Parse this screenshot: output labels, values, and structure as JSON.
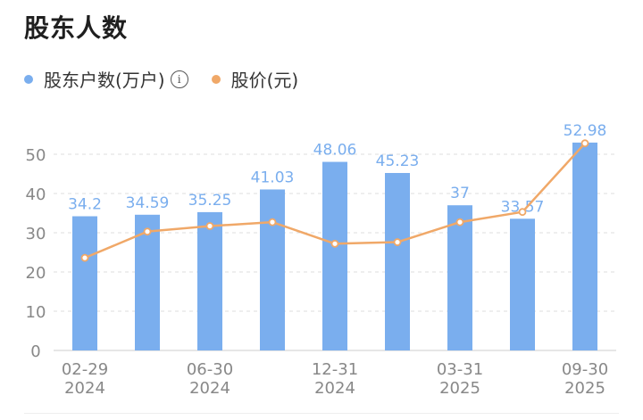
{
  "title": "股东人数",
  "legend": {
    "holders_label": "股东户数(万户)",
    "price_label": "股价(元)",
    "info_icon": "info-icon"
  },
  "colors": {
    "bar": "#7aaeee",
    "bar_label": "#7aaeee",
    "line": "#f0a868",
    "grid": "#dddddd",
    "axis_text": "#888888"
  },
  "chart_data": {
    "type": "bar",
    "categories": [
      "02-29 2024",
      "",
      "06-30 2024",
      "",
      "12-31 2024",
      "",
      "03-31 2025",
      "",
      "09-30 2025"
    ],
    "x_tick_labels": [
      {
        "top": "02-29",
        "bottom": "2024"
      },
      {
        "top": "06-30",
        "bottom": "2024"
      },
      {
        "top": "12-31",
        "bottom": "2024"
      },
      {
        "top": "03-31",
        "bottom": "2025"
      },
      {
        "top": "09-30",
        "bottom": "2025"
      }
    ],
    "series": [
      {
        "name": "股东户数(万户)",
        "type": "bar",
        "values": [
          34.2,
          34.59,
          35.25,
          41.03,
          48.06,
          45.23,
          37,
          33.57,
          52.98
        ],
        "labels": [
          "34.2",
          "34.59",
          "35.25",
          "41.03",
          "48.06",
          "45.23",
          "37",
          "33.57",
          "52.98"
        ]
      },
      {
        "name": "股价(元)",
        "type": "line",
        "values": [
          23.6,
          30.3,
          31.7,
          32.7,
          27.2,
          27.6,
          32.7,
          35.3,
          52.8
        ]
      }
    ],
    "ylim": [
      0,
      55
    ],
    "yticks": [
      0,
      10,
      20,
      30,
      40,
      50
    ],
    "grid": true,
    "legend_position": "top-left"
  }
}
